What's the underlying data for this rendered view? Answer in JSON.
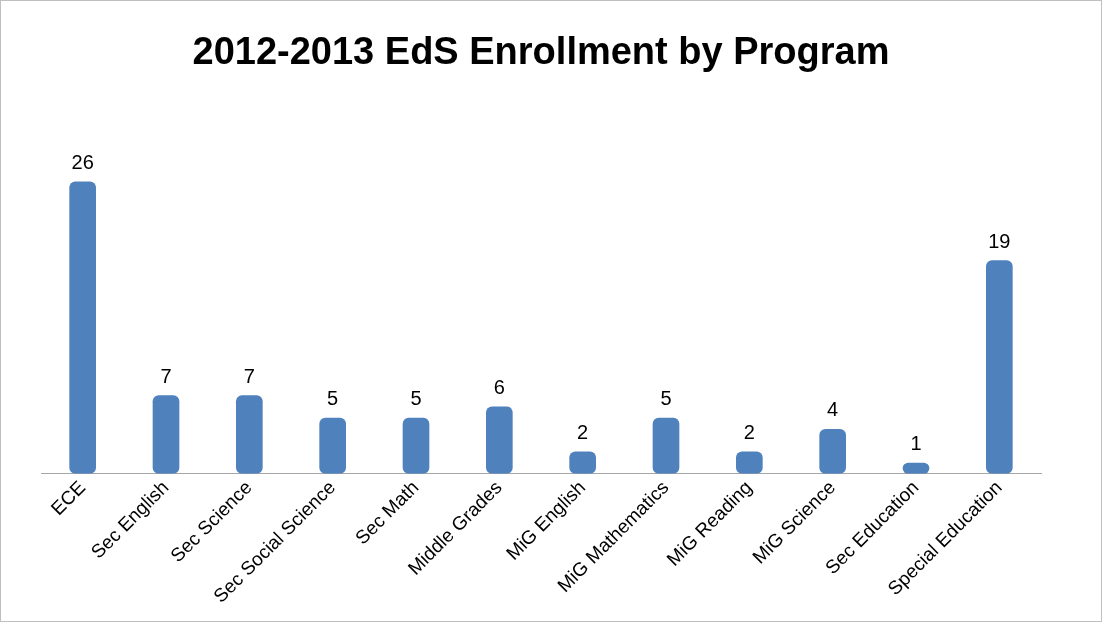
{
  "chart_data": {
    "type": "bar",
    "title": "2012-2013 EdS Enrollment by Program",
    "categories": [
      "ECE",
      "Sec English",
      "Sec Science",
      "Sec Social Science",
      "Sec Math",
      "Middle Grades",
      "MiG English",
      "MiG Mathematics",
      "MiG Reading",
      "MiG Science",
      "Sec Education",
      "Special Education"
    ],
    "values": [
      26,
      7,
      7,
      5,
      5,
      6,
      2,
      5,
      2,
      4,
      1,
      19
    ],
    "color": "#4f81bd",
    "data_labels": true,
    "tick_labels": "x"
  }
}
